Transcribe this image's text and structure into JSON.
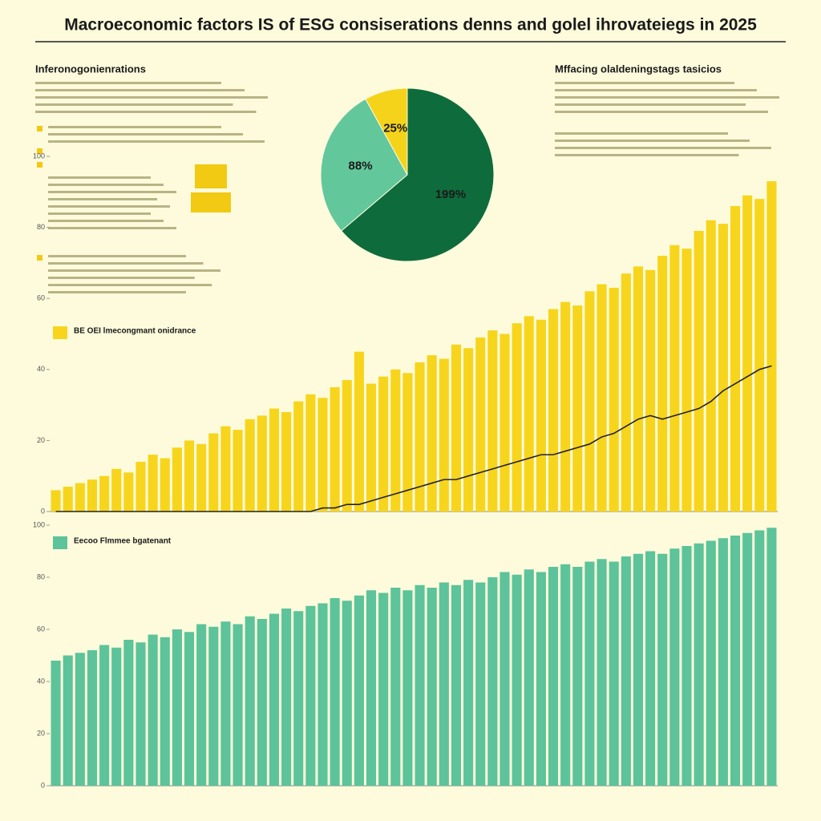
{
  "title": "Macroeconomic factors IS of ESG consiserations denns and golel ihrovateiegs in 2025",
  "left_heading": "Inferonogonienrations",
  "right_heading": "Mffacing olaldeningstags tasicios",
  "chart_data": [
    {
      "type": "pie",
      "values": [
        199,
        88,
        25
      ],
      "value_labels": [
        "199%",
        "88%",
        "25%"
      ],
      "colors": [
        "#0e6b3c",
        "#63c79c",
        "#f5d31a"
      ]
    },
    {
      "type": "bar",
      "series": [
        {
          "name": "BE OEI lmecongmant onidrance",
          "color": "#f7d51c",
          "values": [
            6,
            7,
            8,
            9,
            10,
            12,
            11,
            14,
            16,
            15,
            18,
            20,
            19,
            22,
            24,
            23,
            26,
            27,
            29,
            28,
            31,
            33,
            32,
            35,
            37,
            45,
            36,
            38,
            40,
            39,
            42,
            44,
            43,
            47,
            46,
            49,
            51,
            50,
            53,
            55,
            54,
            57,
            59,
            58,
            62,
            64,
            63,
            67,
            69,
            68,
            72,
            75,
            74,
            79,
            82,
            81,
            86,
            89,
            88,
            93
          ]
        },
        {
          "type": "line",
          "color": "#222222",
          "values": [
            0,
            0,
            0,
            0,
            0,
            0,
            0,
            0,
            0,
            0,
            0,
            0,
            0,
            0,
            0,
            0,
            0,
            0,
            0,
            0,
            0,
            0,
            1,
            1,
            2,
            2,
            3,
            4,
            5,
            6,
            7,
            8,
            9,
            9,
            10,
            11,
            12,
            13,
            14,
            15,
            16,
            16,
            17,
            18,
            19,
            21,
            22,
            24,
            26,
            27,
            26,
            27,
            28,
            29,
            31,
            34,
            36,
            38,
            40,
            41
          ]
        }
      ],
      "ylim": [
        0,
        100
      ],
      "yticks": [
        0,
        20,
        40,
        60,
        80,
        100
      ]
    },
    {
      "type": "bar",
      "series": [
        {
          "name": "Eecoo Flmmee bgatenant",
          "color": "#5cc39a",
          "values": [
            48,
            50,
            51,
            52,
            54,
            53,
            56,
            55,
            58,
            57,
            60,
            59,
            62,
            61,
            63,
            62,
            65,
            64,
            66,
            68,
            67,
            69,
            70,
            72,
            71,
            73,
            75,
            74,
            76,
            75,
            77,
            76,
            78,
            77,
            79,
            78,
            80,
            82,
            81,
            83,
            82,
            84,
            85,
            84,
            86,
            87,
            86,
            88,
            89,
            90,
            89,
            91,
            92,
            93,
            94,
            95,
            96,
            97,
            98,
            99
          ]
        }
      ],
      "ylim": [
        0,
        100
      ],
      "yticks": [
        0,
        20,
        40,
        60,
        80,
        100
      ]
    }
  ]
}
